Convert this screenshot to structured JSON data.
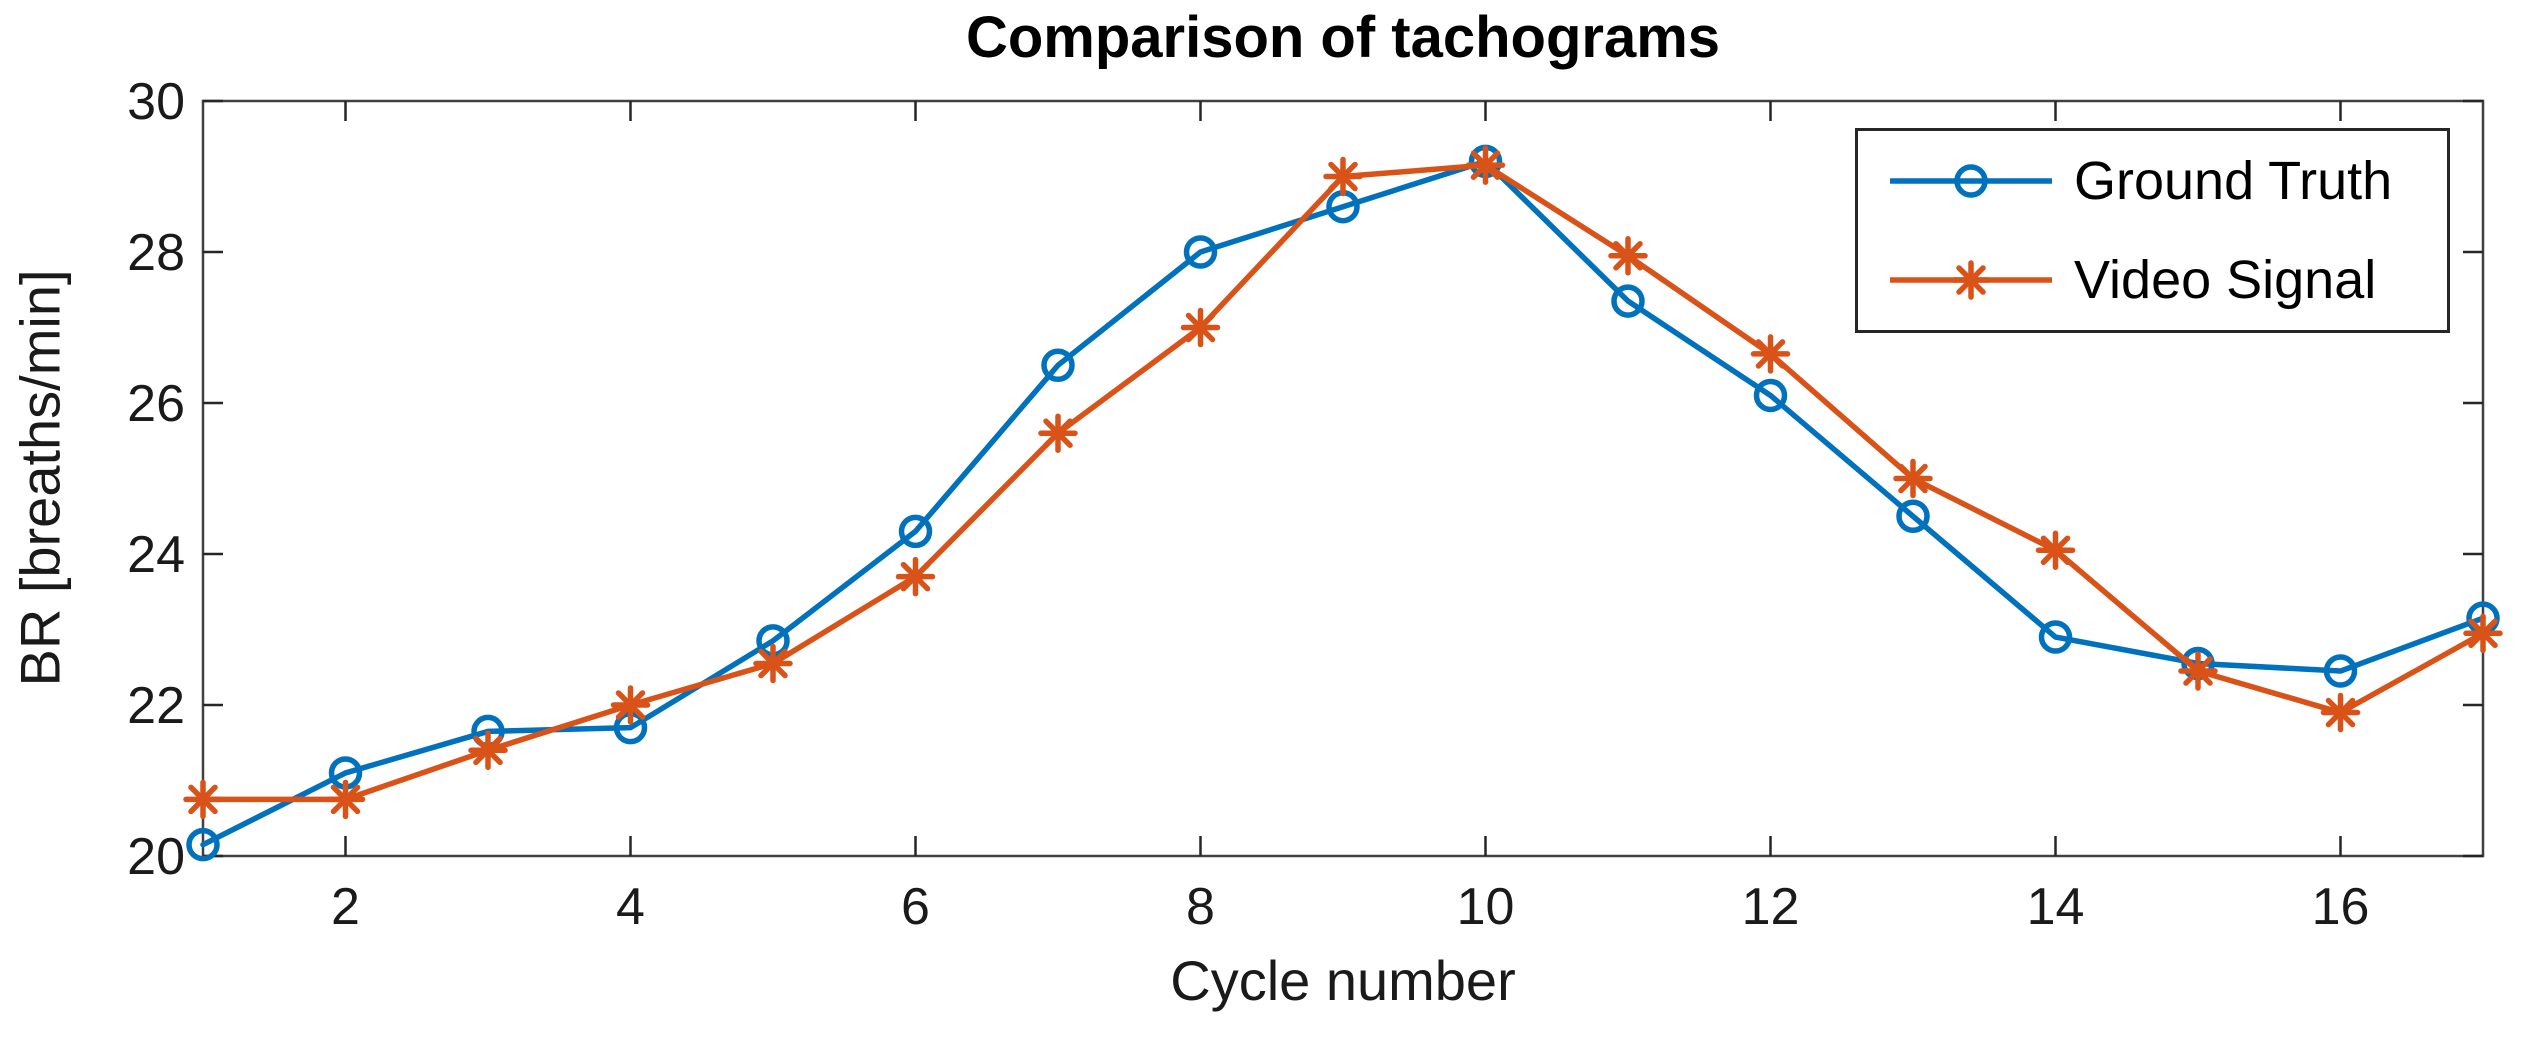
{
  "figure": {
    "background": "#ffffff",
    "axis_color": "#262626",
    "spine_color": "#404040",
    "text_color": "#1a1a1a"
  },
  "chart_data": {
    "type": "line",
    "title": "Comparison of tachograms",
    "xlabel": "Cycle number",
    "ylabel": "BR [breaths/min]",
    "x": [
      1,
      2,
      3,
      4,
      5,
      6,
      7,
      8,
      9,
      10,
      11,
      12,
      13,
      14,
      15,
      16,
      17
    ],
    "xlim": [
      1,
      17
    ],
    "ylim": [
      20,
      30
    ],
    "xticks": [
      2,
      4,
      6,
      8,
      10,
      12,
      14,
      16
    ],
    "yticks": [
      20,
      22,
      24,
      26,
      28,
      30
    ],
    "grid": false,
    "legend_position": "top-right-inside",
    "series": [
      {
        "name": "Ground Truth",
        "color": "#0072BD",
        "marker": "circle",
        "values": [
          20.15,
          21.1,
          21.65,
          21.7,
          22.85,
          24.3,
          26.5,
          28.0,
          28.6,
          29.2,
          27.35,
          26.1,
          24.5,
          22.9,
          22.55,
          22.45,
          23.15
        ]
      },
      {
        "name": "Video Signal",
        "color": "#D95319",
        "marker": "asterisk",
        "values": [
          20.75,
          20.75,
          21.4,
          22.0,
          22.55,
          23.7,
          25.6,
          27.0,
          29.0,
          29.15,
          27.95,
          26.65,
          25.0,
          24.05,
          22.45,
          21.9,
          22.95
        ]
      }
    ]
  }
}
